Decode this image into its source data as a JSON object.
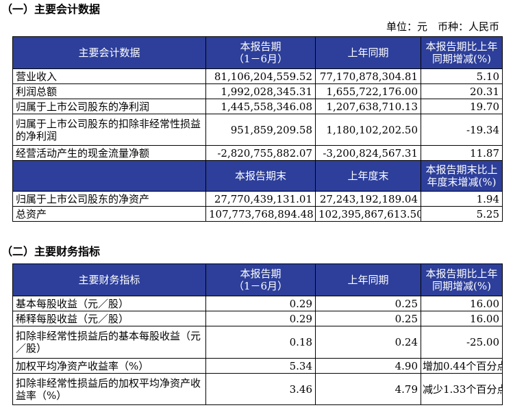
{
  "section1": {
    "title": "（一）主要会计数据",
    "unit_line": "单位：元　币种：人民币",
    "header1": {
      "col1": "主要会计数据",
      "col2_l1": "本报告期",
      "col2_l2": "（1－6月）",
      "col3": "上年同期",
      "col4_l1": "本报告期比上年",
      "col4_l2": "同期增减(%)"
    },
    "rows1": [
      {
        "label": "营业收入",
        "cur": "81,106,204,559.52",
        "prev": "77,170,878,304.81",
        "chg": "5.10"
      },
      {
        "label": "利润总额",
        "cur": "1,992,028,345.31",
        "prev": "1,655,722,176.00",
        "chg": "20.31"
      },
      {
        "label": "归属于上市公司股东的净利润",
        "cur": "1,445,558,346.08",
        "prev": "1,207,638,710.13",
        "chg": "19.70"
      },
      {
        "label": "归属于上市公司股东的扣除非经常性损益的净利润",
        "cur": "951,859,209.58",
        "prev": "1,180,102,202.50",
        "chg": "-19.34"
      },
      {
        "label": "经营活动产生的现金流量净额",
        "cur": "-2,820,755,882.07",
        "prev": "-3,200,824,567.31",
        "chg": "11.87"
      }
    ],
    "header2": {
      "col2": "本报告期末",
      "col3": "上年度末",
      "col4_l1": "本报告期末比上",
      "col4_l2": "年度末增减(%)"
    },
    "rows2": [
      {
        "label": "归属于上市公司股东的净资产",
        "cur": "27,770,439,131.01",
        "prev": "27,243,192,189.04",
        "chg": "1.94"
      },
      {
        "label": "总资产",
        "cur": "107,773,768,894.48",
        "prev": "102,395,867,613.50",
        "chg": "5.25"
      }
    ]
  },
  "section2": {
    "title": "（二）主要财务指标",
    "header": {
      "col1": "主要财务指标",
      "col2_l1": "本报告期",
      "col2_l2": "（1－6月）",
      "col3": "上年同期",
      "col4_l1": "本报告期比上年",
      "col4_l2": "同期增减(%)"
    },
    "rows": [
      {
        "label": "基本每股收益（元／股）",
        "cur": "0.29",
        "prev": "0.25",
        "chg": "16.00"
      },
      {
        "label": "稀释每股收益（元／股）",
        "cur": "0.29",
        "prev": "0.25",
        "chg": "16.00"
      },
      {
        "label": "扣除非经常性损益后的基本每股收益（元／股）",
        "cur": "0.18",
        "prev": "0.24",
        "chg": "-25.00"
      },
      {
        "label": "加权平均净资产收益率（%）",
        "cur": "5.34",
        "prev": "4.90",
        "chg": "增加0.44个百分点"
      },
      {
        "label": "扣除非经常性损益后的加权平均净资产收益率（%）",
        "cur": "3.46",
        "prev": "4.79",
        "chg": "减少1.33个百分点"
      }
    ]
  },
  "colors": {
    "header_bg": "#2d3f9a",
    "header_text": "#ffffff"
  }
}
